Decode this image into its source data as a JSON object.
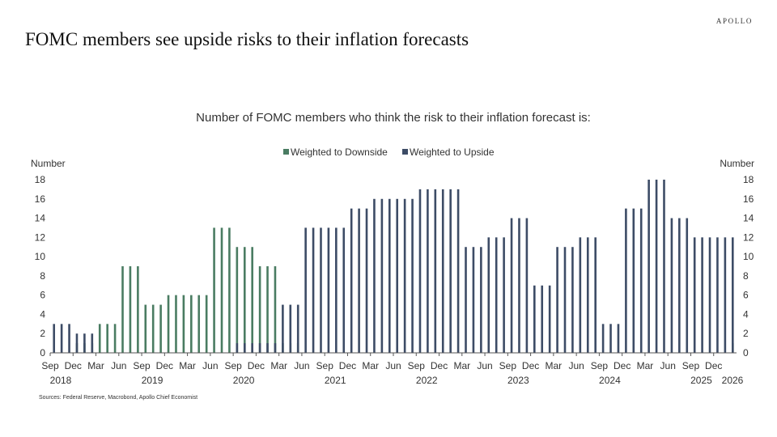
{
  "brand": "APOLLO",
  "headline": "FOMC members see upside risks to their inflation forecasts",
  "source": "Sources: Federal Reserve, Macrobond, Apollo Chief Economist",
  "colors": {
    "downside": "#4a7c62",
    "upside": "#3d4c66",
    "axis": "#555555"
  },
  "chart_data": {
    "type": "bar",
    "title": "Number of FOMC members who think the risk to their inflation forecast is:",
    "ylabel_left": "Number",
    "ylabel_right": "Number",
    "ylim": [
      0,
      18
    ],
    "yticks": [
      0,
      2,
      4,
      6,
      8,
      10,
      12,
      14,
      16,
      18
    ],
    "grid": false,
    "legend_position": "top-center",
    "x_month_labels": [
      "Sep",
      "Dec",
      "Mar",
      "Jun",
      "Sep",
      "Dec",
      "Mar",
      "Jun",
      "Sep",
      "Dec",
      "Mar",
      "Jun",
      "Sep",
      "Dec",
      "Mar",
      "Jun",
      "Sep",
      "Dec",
      "Mar",
      "Jun",
      "Sep",
      "Dec",
      "Mar",
      "Jun",
      "Sep",
      "Dec",
      "Mar",
      "Jun",
      "Sep",
      "Dec"
    ],
    "x_year_labels": [
      "2018",
      "2019",
      "2020",
      "2021",
      "2022",
      "2023",
      "2024",
      "2025",
      "2026"
    ],
    "series": [
      {
        "name": "Weighted to Downside",
        "color": "#4a7c62",
        "values": [
          0,
          0,
          0,
          1,
          1,
          1,
          3,
          3,
          3,
          9,
          9,
          9,
          5,
          5,
          5,
          6,
          6,
          6,
          6,
          6,
          6,
          13,
          13,
          13,
          11,
          11,
          11,
          9,
          9,
          9,
          1,
          1,
          1,
          0,
          0,
          0,
          0,
          0,
          0,
          0,
          0,
          0,
          0,
          0,
          0,
          0,
          0,
          0,
          0,
          0,
          0,
          0,
          0,
          0,
          0,
          0,
          0,
          0,
          0,
          0,
          0,
          0,
          0,
          0,
          0,
          0,
          0,
          0,
          0,
          0,
          0,
          0,
          0,
          0,
          0,
          0,
          0,
          0,
          0,
          0,
          0,
          0,
          0,
          0,
          0,
          0,
          0,
          0,
          0,
          1
        ]
      },
      {
        "name": "Weighted to Upside",
        "color": "#3d4c66",
        "values": [
          3,
          3,
          3,
          2,
          2,
          2,
          0,
          0,
          0,
          0,
          0,
          0,
          0,
          0,
          0,
          0,
          0,
          0,
          0,
          0,
          0,
          0,
          0,
          0,
          1,
          1,
          1,
          1,
          1,
          1,
          5,
          5,
          5,
          13,
          13,
          13,
          13,
          13,
          13,
          15,
          15,
          15,
          16,
          16,
          16,
          16,
          16,
          16,
          17,
          17,
          17,
          17,
          17,
          17,
          11,
          11,
          11,
          12,
          12,
          12,
          14,
          14,
          14,
          7,
          7,
          7,
          11,
          11,
          11,
          12,
          12,
          12,
          3,
          3,
          3,
          15,
          15,
          15,
          18,
          18,
          18,
          14,
          14,
          14,
          12,
          12,
          12,
          12,
          12,
          12
        ]
      }
    ]
  }
}
